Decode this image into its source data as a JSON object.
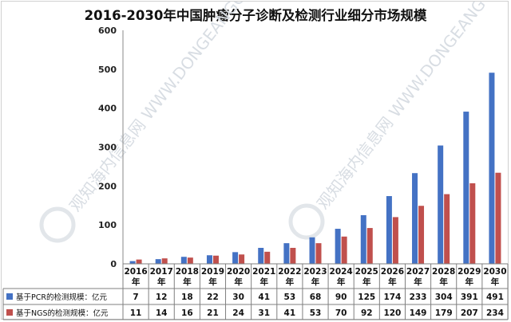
{
  "chart_data": {
    "type": "bar",
    "title": "2016-2030年中国肿瘤分子诊断及检测行业细分市场规模",
    "categories": [
      "2016年",
      "2017年",
      "2018年",
      "2019年",
      "2020年",
      "2021年",
      "2022年",
      "2023年",
      "2024年",
      "2025年",
      "2026年",
      "2027年",
      "2028年",
      "2029年",
      "2030年"
    ],
    "series": [
      {
        "name": "基于PCR的检测规模：亿元",
        "color": "#4472c4",
        "values": [
          7,
          12,
          18,
          22,
          30,
          41,
          53,
          68,
          90,
          125,
          174,
          233,
          304,
          391,
          491
        ]
      },
      {
        "name": "基于NGS的检测规模：亿元",
        "color": "#c0504d",
        "values": [
          11,
          14,
          16,
          21,
          24,
          31,
          41,
          53,
          70,
          92,
          120,
          149,
          179,
          207,
          234
        ]
      }
    ],
    "ylim": [
      0,
      600
    ],
    "yticks": [
      0,
      100,
      200,
      300,
      400,
      500,
      600
    ],
    "grid": false,
    "legend": "data-table-left",
    "watermark": "观知海内信息网 WWW.DONGEANGCB.COM"
  }
}
